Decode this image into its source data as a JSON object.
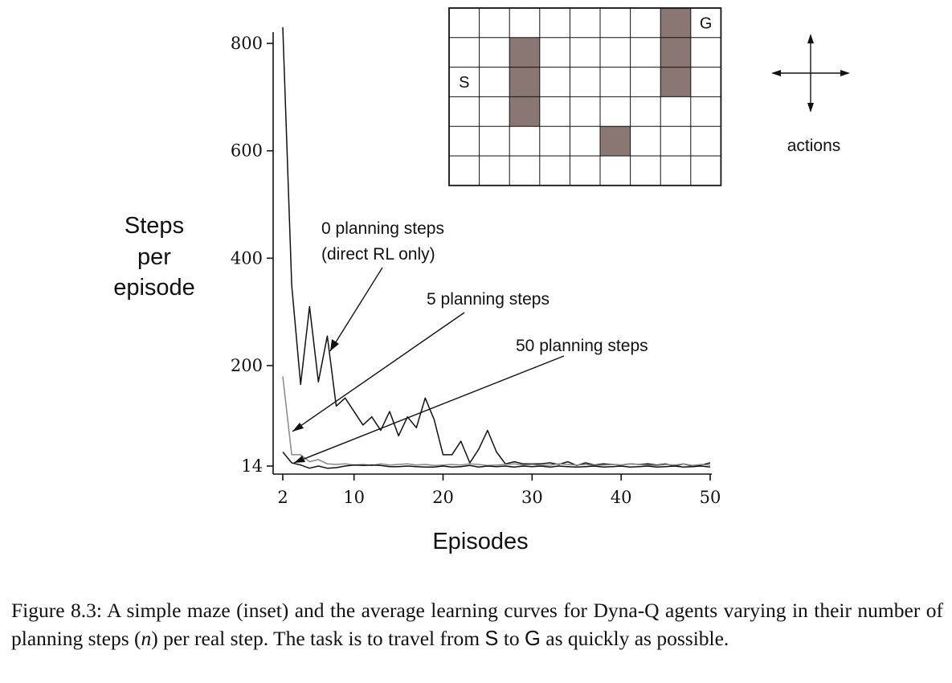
{
  "chart_data": {
    "type": "line",
    "xlabel": "Episodes",
    "ylabel": [
      "Steps",
      "per",
      "episode"
    ],
    "xlim": [
      2,
      50
    ],
    "ylim": [
      14,
      820
    ],
    "xticks": [
      2,
      10,
      20,
      30,
      40,
      50
    ],
    "yticks": [
      14,
      200,
      400,
      600,
      800
    ],
    "grid": false,
    "series": [
      {
        "name": "0 planning steps (direct RL only)",
        "color": "#111111",
        "x": [
          2,
          3,
          4,
          5,
          6,
          7,
          8,
          9,
          10,
          11,
          12,
          13,
          14,
          15,
          16,
          17,
          18,
          19,
          20,
          21,
          22,
          23,
          24,
          25,
          26,
          27,
          28,
          29,
          30,
          31,
          32,
          33,
          34,
          35,
          36,
          37,
          38,
          39,
          40,
          41,
          42,
          43,
          44,
          45,
          46,
          47,
          48,
          49,
          50
        ],
        "values": [
          830,
          350,
          165,
          310,
          170,
          255,
          125,
          140,
          115,
          90,
          105,
          80,
          115,
          70,
          105,
          85,
          140,
          100,
          35,
          35,
          60,
          20,
          45,
          80,
          40,
          18,
          22,
          18,
          18,
          18,
          20,
          17,
          22,
          15,
          20,
          16,
          18,
          17,
          16,
          18,
          17,
          18,
          16,
          18,
          14,
          18,
          14,
          16,
          20
        ]
      },
      {
        "name": "5 planning steps",
        "color": "#888888",
        "x": [
          2,
          3,
          4,
          5,
          6,
          7,
          8,
          9,
          10,
          11,
          12,
          13,
          14,
          15,
          16,
          17,
          18,
          19,
          20,
          21,
          22,
          23,
          24,
          25,
          26,
          27,
          28,
          29,
          30,
          31,
          32,
          33,
          34,
          35,
          36,
          37,
          38,
          39,
          40,
          41,
          42,
          43,
          44,
          45,
          46,
          47,
          48,
          49,
          50
        ],
        "values": [
          180,
          35,
          35,
          22,
          26,
          18,
          17,
          18,
          16,
          17,
          15,
          18,
          16,
          17,
          18,
          16,
          17,
          15,
          16,
          17,
          16,
          18,
          17,
          15,
          16,
          17,
          18,
          16,
          17,
          15,
          16,
          18,
          17,
          16,
          17,
          15,
          16,
          17,
          16,
          18,
          17,
          16,
          15,
          17,
          16,
          18,
          15,
          17,
          16
        ]
      },
      {
        "name": "50 planning steps",
        "color": "#111111",
        "x": [
          2,
          3,
          4,
          5,
          6,
          7,
          8,
          9,
          10,
          11,
          12,
          13,
          14,
          15,
          16,
          17,
          18,
          19,
          20,
          21,
          22,
          23,
          24,
          25,
          26,
          27,
          28,
          29,
          30,
          31,
          32,
          33,
          34,
          35,
          36,
          37,
          38,
          39,
          40,
          41,
          42,
          43,
          44,
          45,
          46,
          47,
          48,
          49,
          50
        ],
        "values": [
          40,
          20,
          16,
          10,
          14,
          10,
          11,
          14,
          16,
          15,
          16,
          15,
          13,
          13,
          14,
          13,
          12,
          12,
          14,
          12,
          13,
          15,
          12,
          14,
          13,
          14,
          12,
          14,
          13,
          14,
          12,
          14,
          13,
          12,
          13,
          14,
          12,
          13,
          14,
          12,
          13,
          14,
          12,
          13,
          14,
          12,
          13,
          14,
          12
        ]
      }
    ],
    "annotations": [
      {
        "lines": [
          "0 planning steps",
          "(direct RL only)"
        ],
        "points_to_series": 0
      },
      {
        "lines": [
          "5 planning steps"
        ],
        "points_to_series": 1
      },
      {
        "lines": [
          "50 planning steps"
        ],
        "points_to_series": 2
      }
    ]
  },
  "maze": {
    "rows": 6,
    "cols": 9,
    "start_label": "S",
    "goal_label": "G",
    "start": [
      2,
      0
    ],
    "goal": [
      0,
      8
    ],
    "walls": [
      [
        1,
        2
      ],
      [
        2,
        2
      ],
      [
        3,
        2
      ],
      [
        4,
        5
      ],
      [
        0,
        7
      ],
      [
        1,
        7
      ],
      [
        2,
        7
      ]
    ],
    "wall_color": "#8a7672"
  },
  "actions_label": "actions",
  "caption": {
    "part1": "Figure 8.3: A simple maze (inset) and the average learning curves for Dyna-Q agents varying in their number of planning steps (",
    "n": "n",
    "part2": ") per real step. The task is to travel from ",
    "S": "S",
    "part3": " to ",
    "G": "G",
    "part4": " as quickly as possible."
  }
}
